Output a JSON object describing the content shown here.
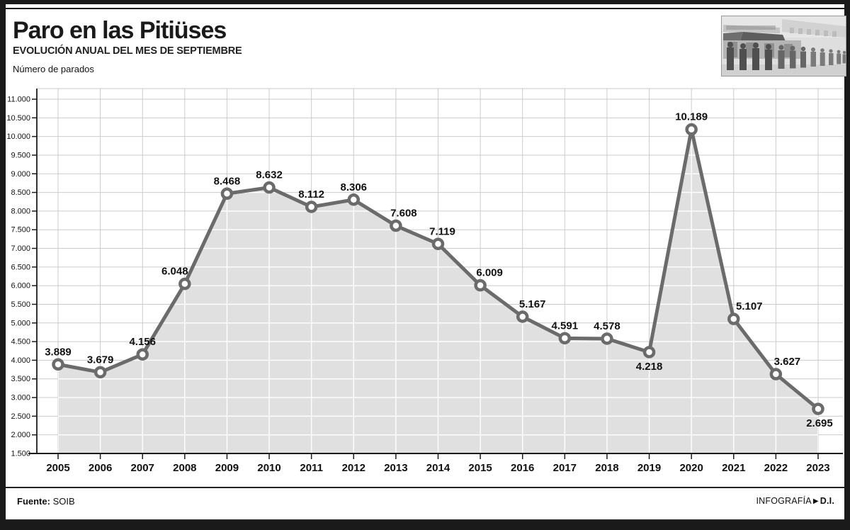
{
  "header": {
    "title": "Paro en las Pitiüses",
    "subtitle": "EVOLUCIÓN ANUAL DEL MES DE SEPTIEMBRE",
    "axis_note": "Número de parados"
  },
  "footer": {
    "source_label": "Fuente:",
    "source_value": " SOIB",
    "credit_label": "INFOGRAFÍA",
    "credit_arrow": "▶",
    "credit_value": "D.I."
  },
  "chart_data": {
    "type": "area",
    "title": "Paro en las Pitiüses",
    "subtitle": "EVOLUCIÓN ANUAL DEL MES DE SEPTIEMBRE",
    "ylabel": "Número de parados",
    "xlabel": "",
    "x": [
      "2005",
      "2006",
      "2007",
      "2008",
      "2009",
      "2010",
      "2011",
      "2012",
      "2013",
      "2014",
      "2015",
      "2016",
      "2017",
      "2018",
      "2019",
      "2020",
      "2021",
      "2022",
      "2023"
    ],
    "values": [
      3889,
      3679,
      4156,
      6048,
      8468,
      8632,
      8112,
      8306,
      7608,
      7119,
      6009,
      5167,
      4591,
      4578,
      4218,
      10189,
      5107,
      3627,
      2695
    ],
    "point_labels": [
      "3.889",
      "3.679",
      "4.156",
      "6.048",
      "8.468",
      "8.632",
      "8.112",
      "8.306",
      "7.608",
      "7.119",
      "6.009",
      "5.167",
      "4.591",
      "4.578",
      "4.218",
      "10.189",
      "5.107",
      "3.627",
      "2.695"
    ],
    "label_pos": [
      "above",
      "above",
      "above",
      "above",
      "above",
      "above",
      "above",
      "above",
      "above",
      "above",
      "above",
      "above",
      "above",
      "above",
      "below",
      "above",
      "above",
      "above",
      "below"
    ],
    "label_dx": [
      0,
      0,
      0,
      -14,
      0,
      0,
      0,
      0,
      11,
      6,
      13,
      14,
      0,
      0,
      0,
      0,
      22,
      16,
      2
    ],
    "ylim": [
      1500,
      11000
    ],
    "ytick_step": 500,
    "ytick_labels_top_to_bottom": [
      "11.000",
      "10.500",
      "10.000",
      "9.500",
      "9.000",
      "8.500",
      "8.000",
      "7.500",
      "7.000",
      "6.500",
      "6.000",
      "5.500",
      "5.000",
      "4.500",
      "4.000",
      "3.500",
      "3.000",
      "2.500",
      "2.000",
      "1.500"
    ],
    "grid": true,
    "legend_position": "none",
    "colors": {
      "line": "#6b6b6b",
      "marker_fill": "#ffffff",
      "area_fill": "#e0e0e0",
      "grid": "#cbcbcb",
      "grid_on_area": "#ffffff",
      "axis": "#1c1c1c",
      "point_label": "#111111"
    }
  }
}
